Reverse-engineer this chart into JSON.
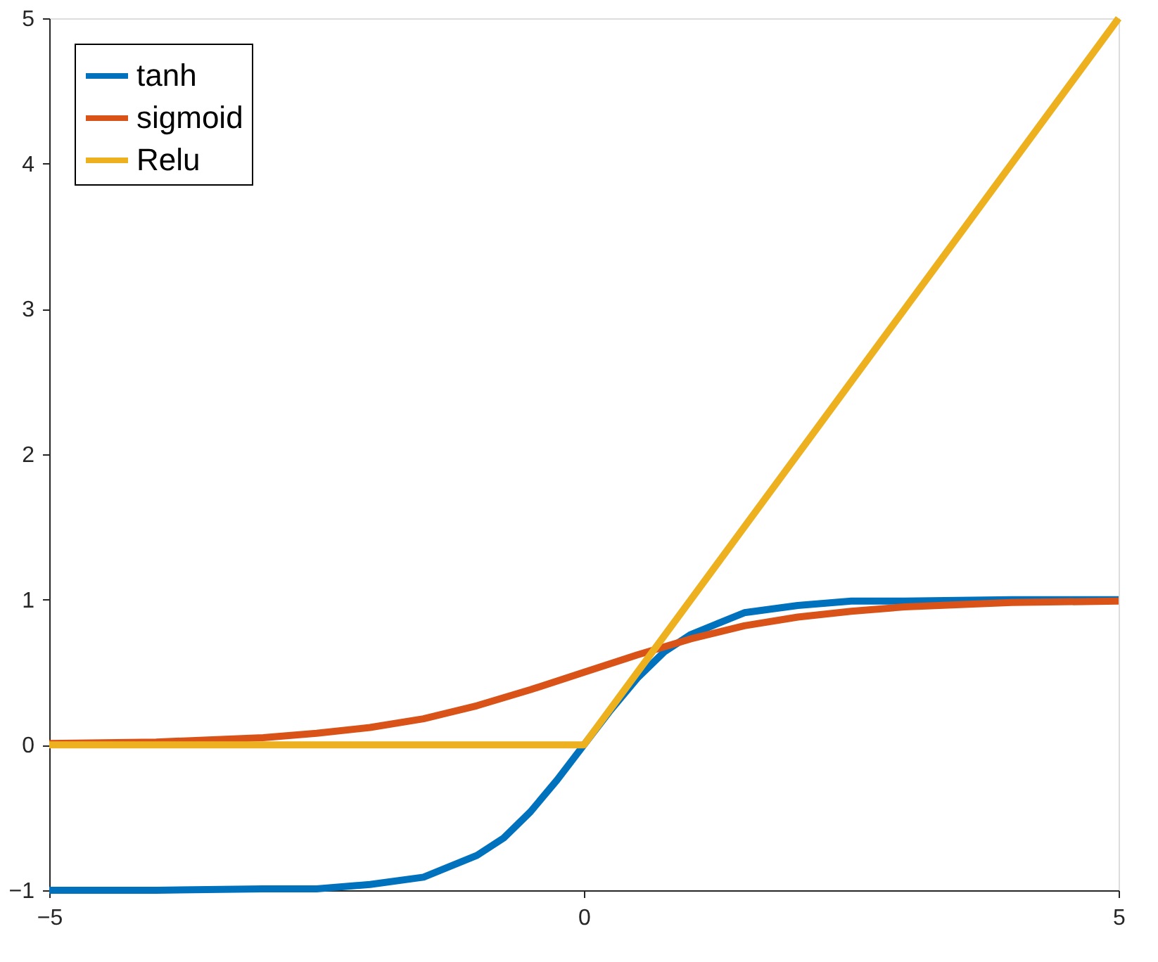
{
  "chart_data": {
    "type": "line",
    "xlim": [
      -5,
      5
    ],
    "ylim": [
      -1,
      5
    ],
    "xticks": [
      -5,
      0,
      5
    ],
    "yticks": [
      -1,
      0,
      1,
      2,
      3,
      4,
      5
    ],
    "grid": false,
    "legend": "top left",
    "line_style": "solid",
    "marker": "none",
    "series": [
      {
        "name": "tanh",
        "color": "#0072bd",
        "x": [
          -5,
          -4,
          -3,
          -2.5,
          -2,
          -1.5,
          -1,
          -0.75,
          -0.5,
          -0.25,
          0,
          0.25,
          0.5,
          0.75,
          1,
          1.5,
          2,
          2.5,
          3,
          4,
          5
        ],
        "values": [
          -1.0,
          -1.0,
          -0.99,
          -0.99,
          -0.96,
          -0.91,
          -0.76,
          -0.64,
          -0.46,
          -0.24,
          0,
          0.24,
          0.46,
          0.64,
          0.76,
          0.91,
          0.96,
          0.99,
          0.99,
          1.0,
          1.0
        ]
      },
      {
        "name": "sigmoid",
        "color": "#d95319",
        "x": [
          -5,
          -4,
          -3,
          -2.5,
          -2,
          -1.5,
          -1,
          -0.5,
          0,
          0.5,
          1,
          1.5,
          2,
          2.5,
          3,
          4,
          5
        ],
        "values": [
          0.01,
          0.02,
          0.05,
          0.08,
          0.12,
          0.18,
          0.27,
          0.38,
          0.5,
          0.62,
          0.73,
          0.82,
          0.88,
          0.92,
          0.95,
          0.98,
          0.99
        ]
      },
      {
        "name": "Relu",
        "color": "#edb120",
        "x": [
          -5,
          0,
          5
        ],
        "values": [
          0,
          0,
          5
        ]
      }
    ]
  }
}
